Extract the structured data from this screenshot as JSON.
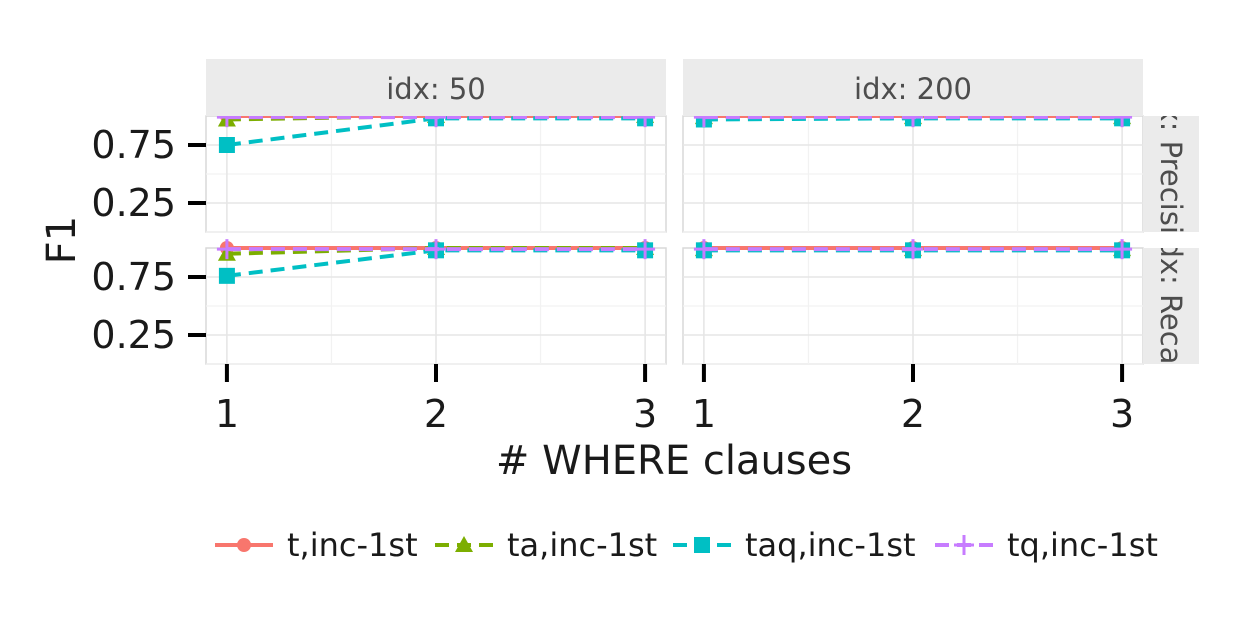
{
  "chart_data": {
    "type": "line",
    "xlabel": "# WHERE clauses",
    "ylabel": "F1",
    "x": [
      1,
      2,
      3
    ],
    "x_ticks": [
      "1",
      "2",
      "3"
    ],
    "y_ticks": [
      0.25,
      0.75
    ],
    "y_tick_labels": [
      "0.25",
      "0.75"
    ],
    "ylim": [
      0.0,
      1.0
    ],
    "grid": true,
    "legend_position": "bottom",
    "col_facets": [
      "idx: 50",
      "idx: 200"
    ],
    "row_facets": [
      "idx: Precision",
      "idx: Recall"
    ],
    "series": [
      {
        "name": "t,inc-1st",
        "color": "#F8766D",
        "marker": "circle",
        "dash": "solid"
      },
      {
        "name": "ta,inc-1st",
        "color": "#7CAE00",
        "marker": "triangle",
        "dash": "dashed"
      },
      {
        "name": "taq,inc-1st",
        "color": "#00BFC4",
        "marker": "square",
        "dash": "dashed"
      },
      {
        "name": "tq,inc-1st",
        "color": "#C77CFF",
        "marker": "plus",
        "dash": "dashed"
      }
    ],
    "panels": [
      {
        "col": 0,
        "row": 0,
        "values": [
          [
            1.0,
            1.0,
            1.0
          ],
          [
            0.97,
            1.0,
            1.0
          ],
          [
            0.75,
            0.98,
            0.98
          ],
          [
            0.99,
            0.99,
            0.99
          ]
        ]
      },
      {
        "col": 1,
        "row": 0,
        "values": [
          [
            1.0,
            1.0,
            1.0
          ],
          [
            0.99,
            0.99,
            0.99
          ],
          [
            0.97,
            0.98,
            0.98
          ],
          [
            0.99,
            0.99,
            0.99
          ]
        ]
      },
      {
        "col": 0,
        "row": 1,
        "values": [
          [
            1.0,
            1.0,
            1.0
          ],
          [
            0.95,
            1.0,
            1.0
          ],
          [
            0.76,
            0.98,
            0.98
          ],
          [
            0.99,
            0.99,
            0.99
          ]
        ]
      },
      {
        "col": 1,
        "row": 1,
        "values": [
          [
            1.0,
            1.0,
            1.0
          ],
          [
            0.99,
            0.99,
            0.99
          ],
          [
            0.98,
            0.98,
            0.98
          ],
          [
            0.99,
            0.99,
            0.99
          ]
        ]
      }
    ]
  }
}
